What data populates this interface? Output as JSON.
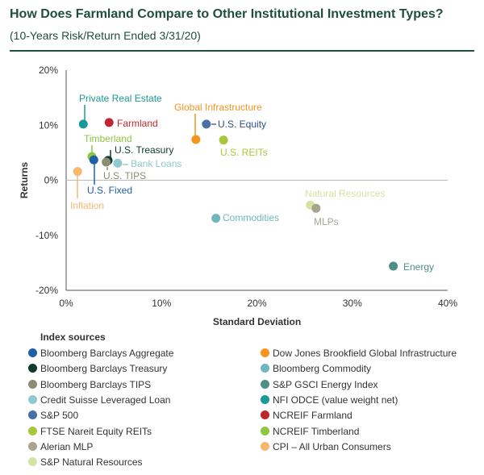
{
  "title": "How Does Farmland Compare to Other Institutional Investment Types?",
  "subtitle": "(10-Years Risk/Return Ended 3/31/20)",
  "chart_data": {
    "type": "scatter",
    "xlabel": "Standard Deviation",
    "ylabel": "Returns",
    "xlim": [
      0,
      40
    ],
    "ylim": [
      -20,
      20
    ],
    "x_ticks": [
      "0%",
      "10%",
      "20%",
      "30%",
      "40%"
    ],
    "y_ticks": [
      "20%",
      "10%",
      "0%",
      "-10%",
      "-20%"
    ],
    "grid": false,
    "points": [
      {
        "label": "Private Real Estate",
        "x": 1.8,
        "y": 10.2,
        "color": "#1a9a96"
      },
      {
        "label": "Farmland",
        "x": 4.5,
        "y": 10.5,
        "color": "#c0272d"
      },
      {
        "label": "Global Infrastructure",
        "x": 13.6,
        "y": 7.4,
        "color": "#f7941d"
      },
      {
        "label": "U.S. Equity",
        "x": 14.7,
        "y": 10.2,
        "color": "#4a6fa5"
      },
      {
        "label": "U.S. REITs",
        "x": 16.5,
        "y": 7.3,
        "color": "#a8c83a"
      },
      {
        "label": "Timberland",
        "x": 2.7,
        "y": 4.3,
        "color": "#8dc63f"
      },
      {
        "label": "U.S. Treasury",
        "x": 4.4,
        "y": 3.6,
        "color": "#0e3b2e"
      },
      {
        "label": "Bank Loans",
        "x": 5.4,
        "y": 3.1,
        "color": "#8fcad1"
      },
      {
        "label": "U.S. TIPS",
        "x": 4.2,
        "y": 3.3,
        "color": "#8c8c73"
      },
      {
        "label": "U.S. Fixed",
        "x": 2.9,
        "y": 3.7,
        "color": "#1f5fa8"
      },
      {
        "label": "Inflation",
        "x": 1.2,
        "y": 1.6,
        "color": "#f9b66d"
      },
      {
        "label": "Commodities",
        "x": 15.7,
        "y": -6.9,
        "color": "#6fb6bd"
      },
      {
        "label": "Natural Resources",
        "x": 25.6,
        "y": -4.5,
        "color": "#d5e3a3"
      },
      {
        "label": "MLPs",
        "x": 26.2,
        "y": -5.1,
        "color": "#a7a58e"
      },
      {
        "label": "Energy",
        "x": 34.3,
        "y": -15.6,
        "color": "#4f8f86"
      }
    ]
  },
  "legend": {
    "title": "Index sources",
    "left": [
      {
        "label": "Bloomberg Barclays Aggregate",
        "color": "#1f5fa8"
      },
      {
        "label": "Bloomberg Barclays Treasury",
        "color": "#0e3b2e"
      },
      {
        "label": "Bloomberg Barclays TIPS",
        "color": "#8c8c73"
      },
      {
        "label": "Credit Suisse Leveraged Loan",
        "color": "#8fcad1"
      },
      {
        "label": "S&P 500",
        "color": "#4a6fa5"
      },
      {
        "label": "FTSE Nareit Equity REITs",
        "color": "#a8c83a"
      },
      {
        "label": "Alerian MLP",
        "color": "#a7a58e"
      },
      {
        "label": "S&P Natural Resources",
        "color": "#d5e3a3"
      }
    ],
    "right": [
      {
        "label": "Dow Jones Brookfield Global Infrastructure",
        "color": "#f7941d"
      },
      {
        "label": "Bloomberg Commodity",
        "color": "#6fb6bd"
      },
      {
        "label": "S&P GSCI Energy Index",
        "color": "#4f8f86"
      },
      {
        "label": "NFI ODCE (value weight net)",
        "color": "#1a9a96"
      },
      {
        "label": "NCREIF Farmland",
        "color": "#c0272d"
      },
      {
        "label": "NCREIF Timberland",
        "color": "#8dc63f"
      },
      {
        "label": "CPI – All Urban Consumers",
        "color": "#f9b66d"
      }
    ]
  }
}
